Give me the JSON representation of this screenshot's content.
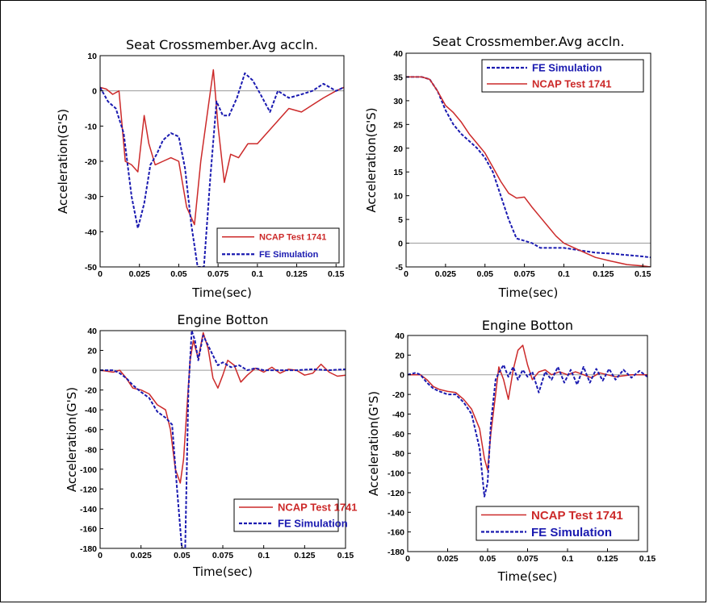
{
  "colors": {
    "ncap": "#cc2a2a",
    "fe": "#1a1ab0",
    "zero_line": "#9a9a9a"
  },
  "chart_data": [
    {
      "type": "line",
      "title": "Seat Crossmember.Avg accln.",
      "xlabel": "Time(sec)",
      "ylabel": "Acceleration(G'S)",
      "xlim": [
        0,
        0.155
      ],
      "ylim": [
        -50,
        10
      ],
      "xticks": [
        0,
        0.025,
        0.05,
        0.075,
        0.1,
        0.125,
        0.15
      ],
      "xtick_labels": [
        "0",
        "0.025",
        "0.05",
        "0.075",
        "0.1",
        "0.125",
        "0.15"
      ],
      "yticks": [
        -50,
        -40,
        -30,
        -20,
        -10,
        0,
        10
      ],
      "ytick_labels": [
        "-50",
        "-40",
        "-30",
        "-20",
        "-10",
        "0",
        "10"
      ],
      "zero_line": true,
      "legend_position": "bottom-right",
      "series": [
        {
          "name": "NCAP Test 1741",
          "style": "solid",
          "color": "#cc2a2a",
          "x": [
            0,
            0.004,
            0.008,
            0.012,
            0.016,
            0.02,
            0.024,
            0.028,
            0.031,
            0.035,
            0.04,
            0.045,
            0.05,
            0.055,
            0.06,
            0.064,
            0.068,
            0.072,
            0.075,
            0.079,
            0.083,
            0.088,
            0.094,
            0.1,
            0.106,
            0.112,
            0.12,
            0.128,
            0.135,
            0.142,
            0.15,
            0.155
          ],
          "y": [
            1,
            0.5,
            -1,
            0,
            -20,
            -21,
            -23,
            -7,
            -15,
            -21,
            -20,
            -19,
            -20,
            -33,
            -38,
            -20,
            -7,
            6,
            -10,
            -26,
            -18,
            -19,
            -15,
            -15,
            -12,
            -9,
            -5,
            -6,
            -4,
            -2,
            0,
            1
          ]
        },
        {
          "name": "FE Simulation",
          "style": "dashed",
          "color": "#1a1ab0",
          "x": [
            0,
            0.005,
            0.01,
            0.015,
            0.02,
            0.024,
            0.028,
            0.032,
            0.036,
            0.04,
            0.045,
            0.05,
            0.054,
            0.058,
            0.062,
            0.066,
            0.07,
            0.074,
            0.078,
            0.082,
            0.087,
            0.092,
            0.097,
            0.102,
            0.108,
            0.113,
            0.12,
            0.128,
            0.135,
            0.142,
            0.15,
            0.155
          ],
          "y": [
            1,
            -3,
            -5,
            -12,
            -30,
            -39,
            -32,
            -21,
            -18,
            -14,
            -12,
            -13,
            -22,
            -38,
            -50,
            -50,
            -25,
            -3,
            -7,
            -7,
            -2,
            5,
            3,
            -1,
            -6,
            0,
            -2,
            -1,
            0,
            2,
            0,
            1
          ]
        }
      ]
    },
    {
      "type": "line",
      "title": "Seat Crossmember.Avg accln.",
      "xlabel": "Time(sec)",
      "ylabel": "Acceleration(G'S)",
      "xlim": [
        0,
        0.155
      ],
      "ylim": [
        -5,
        40
      ],
      "xticks": [
        0,
        0.025,
        0.05,
        0.075,
        0.1,
        0.125,
        0.15
      ],
      "xtick_labels": [
        "0",
        "0.025",
        "0.05",
        "0.075",
        "0.1",
        "0.125",
        "0.15"
      ],
      "yticks": [
        -5,
        0,
        5,
        10,
        15,
        20,
        25,
        30,
        35,
        40
      ],
      "ytick_labels": [
        "-5",
        "0",
        "5",
        "10",
        "15",
        "20",
        "25",
        "30",
        "35",
        "40"
      ],
      "zero_line": true,
      "legend_position": "top-right",
      "series": [
        {
          "name": "FE Simulation",
          "style": "dashed",
          "color": "#1a1ab0",
          "x": [
            0,
            0.01,
            0.015,
            0.02,
            0.025,
            0.03,
            0.035,
            0.04,
            0.045,
            0.05,
            0.055,
            0.06,
            0.065,
            0.07,
            0.075,
            0.08,
            0.085,
            0.09,
            0.1,
            0.11,
            0.12,
            0.13,
            0.14,
            0.15,
            0.155
          ],
          "y": [
            35,
            35,
            34.5,
            32,
            28,
            25,
            23,
            21.5,
            20,
            18,
            15,
            10,
            5,
            1,
            0.5,
            0,
            -1,
            -1,
            -1,
            -1.5,
            -2,
            -2.2,
            -2.5,
            -2.8,
            -3
          ]
        },
        {
          "name": "NCAP Test 1741",
          "style": "solid",
          "color": "#cc2a2a",
          "x": [
            0,
            0.01,
            0.015,
            0.02,
            0.025,
            0.03,
            0.035,
            0.04,
            0.045,
            0.05,
            0.055,
            0.06,
            0.065,
            0.07,
            0.075,
            0.08,
            0.085,
            0.09,
            0.095,
            0.1,
            0.11,
            0.12,
            0.13,
            0.14,
            0.15,
            0.155
          ],
          "y": [
            35,
            35,
            34.5,
            32,
            29,
            27.5,
            25.5,
            23,
            21,
            19,
            16,
            13,
            10.5,
            9.5,
            9.7,
            7.5,
            5.5,
            3.5,
            1.5,
            0,
            -1.5,
            -3,
            -3.8,
            -4.5,
            -4.8,
            -5
          ]
        }
      ]
    },
    {
      "type": "line",
      "title": "Engine Botton",
      "xlabel": "Time(sec)",
      "ylabel": "Acceleration(G'S)",
      "xlim": [
        0,
        0.15
      ],
      "ylim": [
        -180,
        40
      ],
      "xticks": [
        0,
        0.025,
        0.05,
        0.075,
        0.1,
        0.125,
        0.15
      ],
      "xtick_labels": [
        "0",
        "0.025",
        "0.05",
        "0.075",
        "0.1",
        "0.125",
        "0.15"
      ],
      "yticks": [
        -180,
        -160,
        -140,
        -120,
        -100,
        -80,
        -60,
        -40,
        -20,
        0,
        20,
        40
      ],
      "ytick_labels": [
        "-180",
        "-160",
        "-140",
        "-120",
        "-100",
        "-80",
        "-60",
        "-40",
        "-20",
        "0",
        "20",
        "40"
      ],
      "zero_line": true,
      "legend_position": "bottom-right",
      "series": [
        {
          "name": "NCAP Test 1741",
          "style": "solid",
          "color": "#cc2a2a",
          "x": [
            0,
            0.008,
            0.012,
            0.016,
            0.02,
            0.025,
            0.03,
            0.035,
            0.04,
            0.043,
            0.046,
            0.049,
            0.051,
            0.053,
            0.055,
            0.057,
            0.06,
            0.063,
            0.066,
            0.069,
            0.072,
            0.075,
            0.078,
            0.082,
            0.086,
            0.09,
            0.095,
            0.1,
            0.105,
            0.11,
            0.115,
            0.12,
            0.125,
            0.13,
            0.135,
            0.14,
            0.145,
            0.15
          ],
          "y": [
            0,
            -2,
            0,
            -8,
            -18,
            -20,
            -24,
            -35,
            -40,
            -60,
            -100,
            -114,
            -90,
            -40,
            10,
            30,
            12,
            38,
            22,
            -8,
            -18,
            -5,
            10,
            5,
            -12,
            -5,
            2,
            -2,
            3,
            -3,
            1,
            0,
            -5,
            -3,
            6,
            -2,
            -6,
            -5
          ]
        },
        {
          "name": "FE Simulation",
          "style": "dashed",
          "color": "#1a1ab0",
          "x": [
            0,
            0.008,
            0.012,
            0.016,
            0.02,
            0.025,
            0.03,
            0.035,
            0.04,
            0.044,
            0.047,
            0.05,
            0.052,
            0.054,
            0.056,
            0.058,
            0.06,
            0.063,
            0.066,
            0.069,
            0.072,
            0.075,
            0.08,
            0.085,
            0.09,
            0.095,
            0.1,
            0.11,
            0.12,
            0.13,
            0.14,
            0.15
          ],
          "y": [
            0,
            0,
            -3,
            -8,
            -15,
            -22,
            -28,
            -42,
            -48,
            -55,
            -120,
            -180,
            -180,
            -20,
            40,
            30,
            10,
            35,
            25,
            15,
            5,
            8,
            3,
            5,
            0,
            2,
            0,
            0,
            0,
            1,
            0,
            1
          ]
        }
      ]
    },
    {
      "type": "line",
      "title": "Engine Botton",
      "xlabel": "Time(sec)",
      "ylabel": "Acceleration(G'S)",
      "xlim": [
        0,
        0.15
      ],
      "ylim": [
        -180,
        40
      ],
      "xticks": [
        0,
        0.025,
        0.05,
        0.075,
        0.1,
        0.125,
        0.15
      ],
      "xtick_labels": [
        "0",
        "0.025",
        "0.05",
        "0.075",
        "0.1",
        "0.125",
        "0.15"
      ],
      "yticks": [
        -180,
        -160,
        -140,
        -120,
        -100,
        -80,
        -60,
        -40,
        -20,
        0,
        20,
        40
      ],
      "ytick_labels": [
        "-180",
        "-160",
        "-140",
        "-120",
        "-100",
        "-80",
        "-60",
        "-40",
        "-20",
        "0",
        "20",
        "40"
      ],
      "zero_line": true,
      "legend_position": "bottom-right",
      "series": [
        {
          "name": "NCAP Test 1741",
          "style": "solid",
          "color": "#cc2a2a",
          "x": [
            0,
            0.008,
            0.012,
            0.016,
            0.02,
            0.025,
            0.03,
            0.035,
            0.04,
            0.045,
            0.048,
            0.05,
            0.052,
            0.055,
            0.057,
            0.06,
            0.063,
            0.066,
            0.069,
            0.072,
            0.075,
            0.078,
            0.082,
            0.086,
            0.09,
            0.095,
            0.1,
            0.105,
            0.11,
            0.115,
            0.12,
            0.13,
            0.14,
            0.15
          ],
          "y": [
            0,
            0,
            -5,
            -12,
            -15,
            -17,
            -18,
            -25,
            -35,
            -55,
            -85,
            -97,
            -60,
            -20,
            8,
            -5,
            -25,
            5,
            25,
            30,
            10,
            -5,
            3,
            5,
            0,
            3,
            0,
            3,
            0,
            -3,
            2,
            -2,
            0,
            0
          ]
        },
        {
          "name": "FE Simulation",
          "style": "dashed",
          "color": "#1a1ab0",
          "x": [
            0,
            0.005,
            0.008,
            0.012,
            0.016,
            0.02,
            0.025,
            0.03,
            0.035,
            0.04,
            0.045,
            0.048,
            0.05,
            0.052,
            0.055,
            0.057,
            0.06,
            0.063,
            0.066,
            0.069,
            0.072,
            0.075,
            0.078,
            0.082,
            0.086,
            0.09,
            0.094,
            0.098,
            0.102,
            0.106,
            0.11,
            0.114,
            0.118,
            0.122,
            0.126,
            0.13,
            0.135,
            0.14,
            0.145,
            0.15
          ],
          "y": [
            0,
            2,
            0,
            -8,
            -14,
            -17,
            -20,
            -20,
            -28,
            -40,
            -75,
            -124,
            -110,
            -50,
            -5,
            2,
            10,
            -2,
            8,
            -5,
            5,
            -2,
            3,
            -18,
            3,
            -5,
            8,
            -8,
            5,
            -10,
            8,
            -8,
            6,
            -6,
            6,
            -5,
            5,
            -3,
            4,
            -2
          ]
        }
      ]
    }
  ]
}
